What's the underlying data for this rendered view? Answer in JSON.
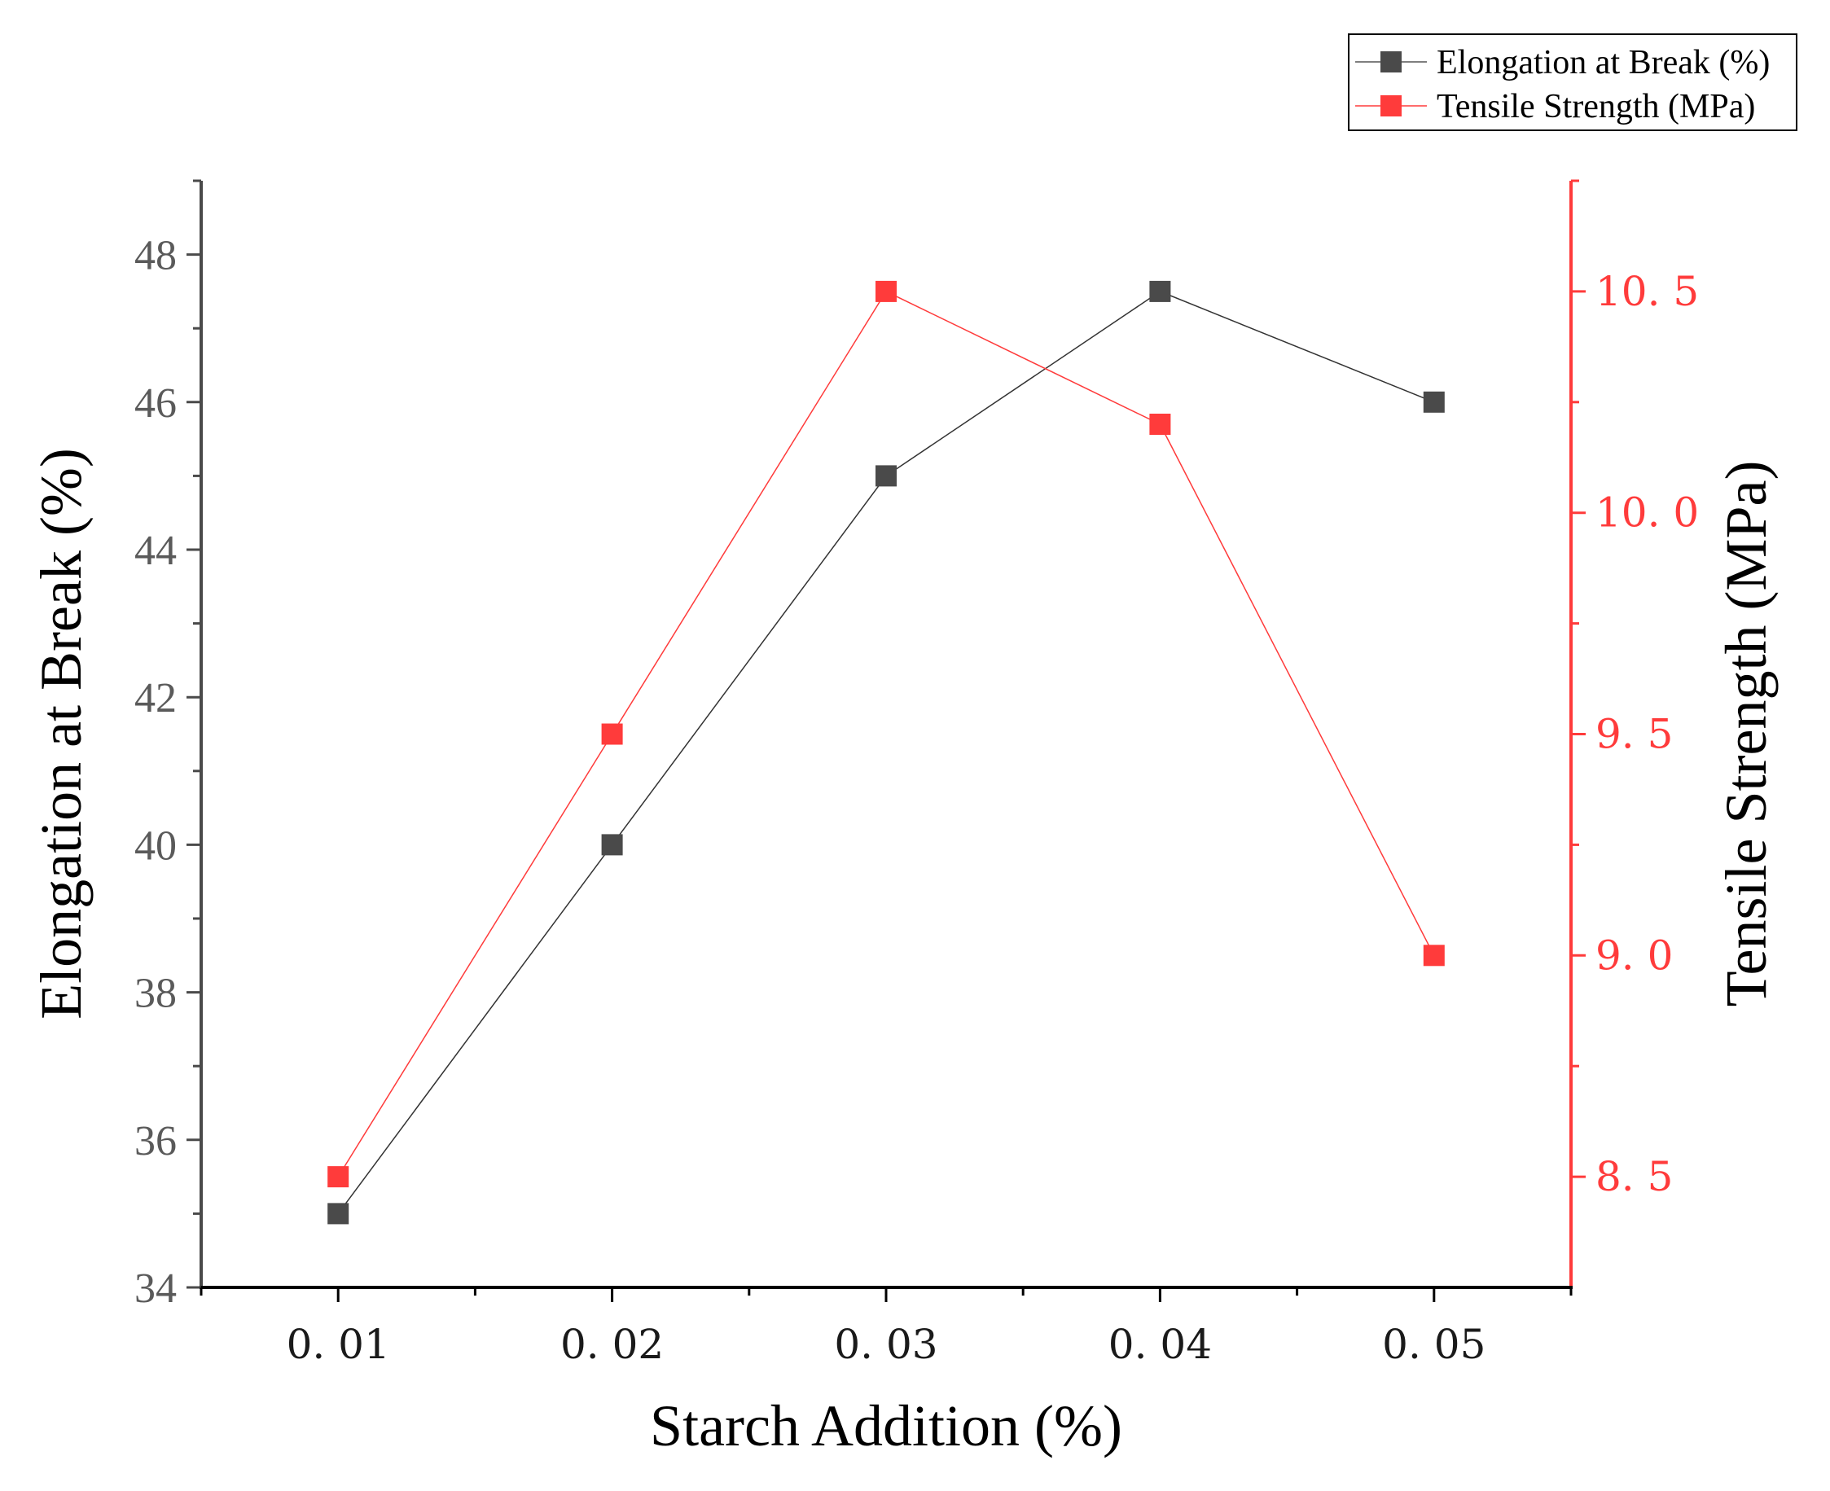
{
  "chart_data": {
    "type": "line",
    "title": "",
    "xlabel": "Starch Addition (%)",
    "x": [
      0.01,
      0.02,
      0.03,
      0.04,
      0.05
    ],
    "x_tick_labels": [
      "0. 01",
      "0. 02",
      "0. 03",
      "0. 04",
      "0. 05"
    ],
    "xlim": [
      0.005,
      0.055
    ],
    "grid": false,
    "legend_position": "top-right, outside plot area",
    "y_left": {
      "label": "Elongation at Break (%)",
      "lim": [
        34,
        49
      ],
      "ticks": [
        34,
        36,
        38,
        40,
        42,
        44,
        46,
        48
      ],
      "tick_labels": [
        "34",
        "36",
        "38",
        "40",
        "42",
        "44",
        "46",
        "48"
      ],
      "color": "#5a5a5a"
    },
    "y_right": {
      "label": "Tensile Strength (MPa)",
      "lim": [
        8.25,
        10.75
      ],
      "ticks": [
        8.5,
        9.0,
        9.5,
        10.0,
        10.5
      ],
      "tick_labels": [
        "8. 5",
        "9. 0",
        "9. 5",
        "10. 0",
        "10. 5"
      ],
      "color": "#ff3b3b"
    },
    "series": [
      {
        "name": "Elongation at Break (%)",
        "axis": "left",
        "color": "#333333",
        "marker_color": "#4a4a4a",
        "values": [
          35.0,
          40.0,
          45.0,
          47.5,
          46.0
        ]
      },
      {
        "name": "Tensile Strength (MPa)",
        "axis": "right",
        "color": "#ff3b3b",
        "marker_color": "#ff3b3b",
        "values": [
          8.5,
          9.5,
          10.5,
          10.2,
          9.0
        ]
      }
    ]
  }
}
